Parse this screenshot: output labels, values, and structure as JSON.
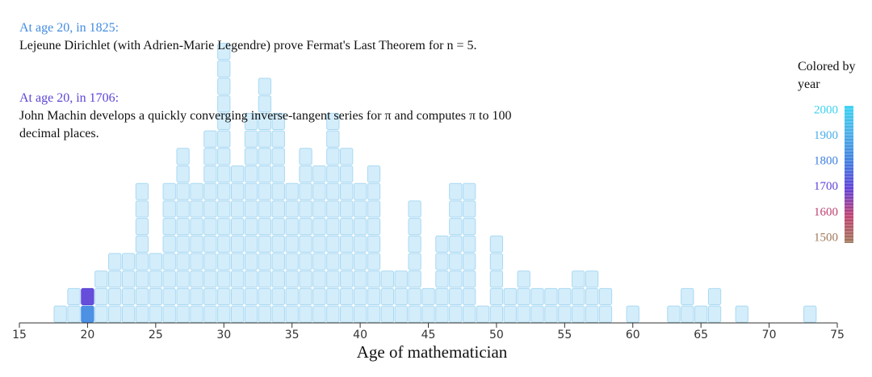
{
  "chart_data": {
    "type": "unit-histogram",
    "xlabel": "Age of mathematician",
    "x": [
      18,
      19,
      20,
      21,
      22,
      23,
      24,
      25,
      26,
      27,
      28,
      29,
      30,
      31,
      32,
      33,
      34,
      35,
      36,
      37,
      38,
      39,
      40,
      41,
      42,
      43,
      44,
      45,
      46,
      47,
      48,
      49,
      50,
      51,
      52,
      53,
      54,
      55,
      56,
      57,
      58,
      60,
      63,
      64,
      65,
      66,
      68,
      73
    ],
    "values": [
      1,
      2,
      2,
      3,
      4,
      4,
      8,
      4,
      8,
      10,
      8,
      11,
      16,
      9,
      12,
      14,
      12,
      8,
      10,
      9,
      12,
      10,
      8,
      9,
      3,
      3,
      7,
      2,
      5,
      8,
      8,
      1,
      5,
      2,
      3,
      2,
      2,
      2,
      3,
      3,
      2,
      1,
      1,
      2,
      1,
      2,
      1,
      1
    ],
    "color": "#cdeafa",
    "xlim": [
      15,
      75
    ],
    "xticks": [
      15,
      20,
      25,
      30,
      35,
      40,
      45,
      50,
      55,
      60,
      65,
      70,
      75
    ],
    "colorbar": {
      "title": "Colored by year",
      "ticks": [
        2000,
        1900,
        1800,
        1700,
        1600,
        1500
      ],
      "colors": [
        "#3ad2f2",
        "#4aaee8",
        "#3f7fe0",
        "#6040d8",
        "#c04070",
        "#a0785a"
      ]
    },
    "annotations": [
      {
        "heading": "At age 20, in 1825:",
        "age": 20,
        "year": 1825,
        "text": "Lejeune Dirichlet (with Adrien-Marie Legendre) prove Fermat's Last Theorem for n = 5."
      },
      {
        "heading": "At age 20, in 1706:",
        "age": 20,
        "year": 1706,
        "text": "John Machin develops a quickly converging inverse-tangent series for π and computes π to 100 decimal places."
      }
    ]
  }
}
